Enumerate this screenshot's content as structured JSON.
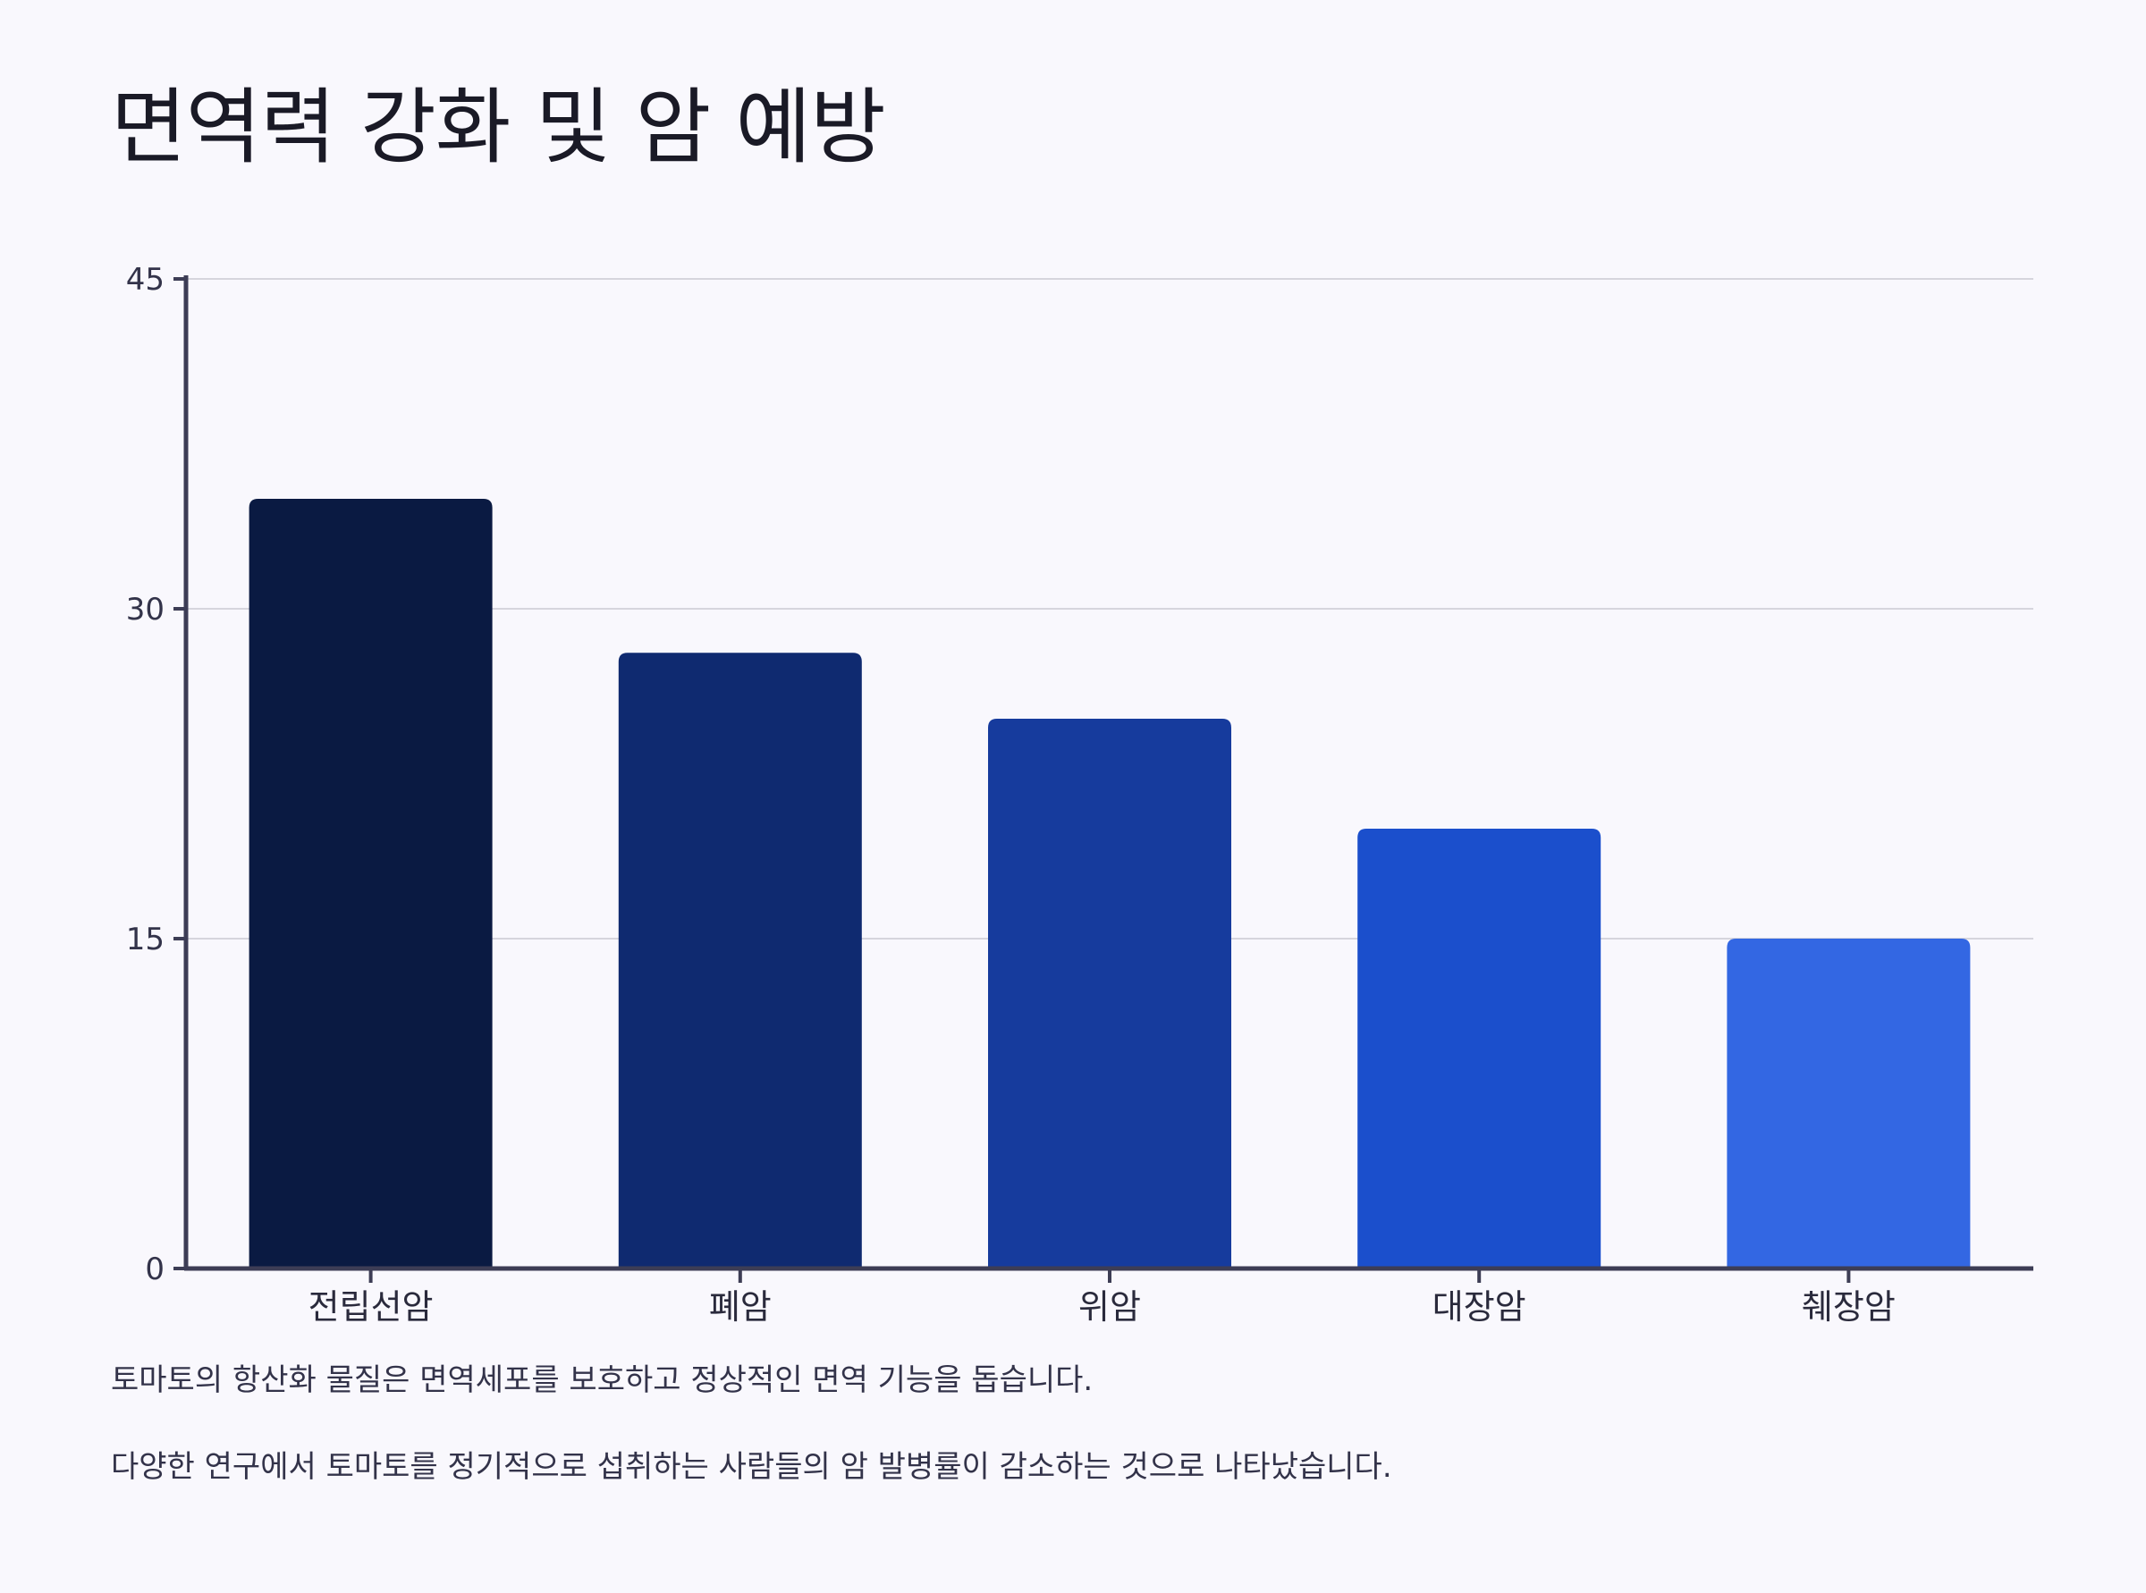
{
  "page": {
    "notes": [
      "토마토의 항산화 물질은 면역세포를 보호하고 정상적인 면역 기능을 돕습니다.",
      "다양한 연구에서 토마토를 정기적으로 섭취하는 사람들의 암 발병률이 감소하는 것으로 나타났습니다."
    ]
  },
  "chart_data": {
    "type": "bar",
    "title": "면역력 강화 및 암 예방",
    "xlabel": "",
    "ylabel": "",
    "categories": [
      "전립선암",
      "폐암",
      "위암",
      "대장암",
      "췌장암"
    ],
    "values": [
      35,
      28,
      25,
      20,
      15
    ],
    "ylim": [
      0,
      45
    ],
    "yticks": [
      0,
      15,
      30,
      45
    ],
    "grid": true,
    "legend": "none",
    "colors": [
      "#0a1a42",
      "#0f2a70",
      "#163b9d",
      "#1b4fcc",
      "#3367e3"
    ],
    "axis_color": "#3d3d55",
    "grid_color": "#d6d5dd"
  }
}
